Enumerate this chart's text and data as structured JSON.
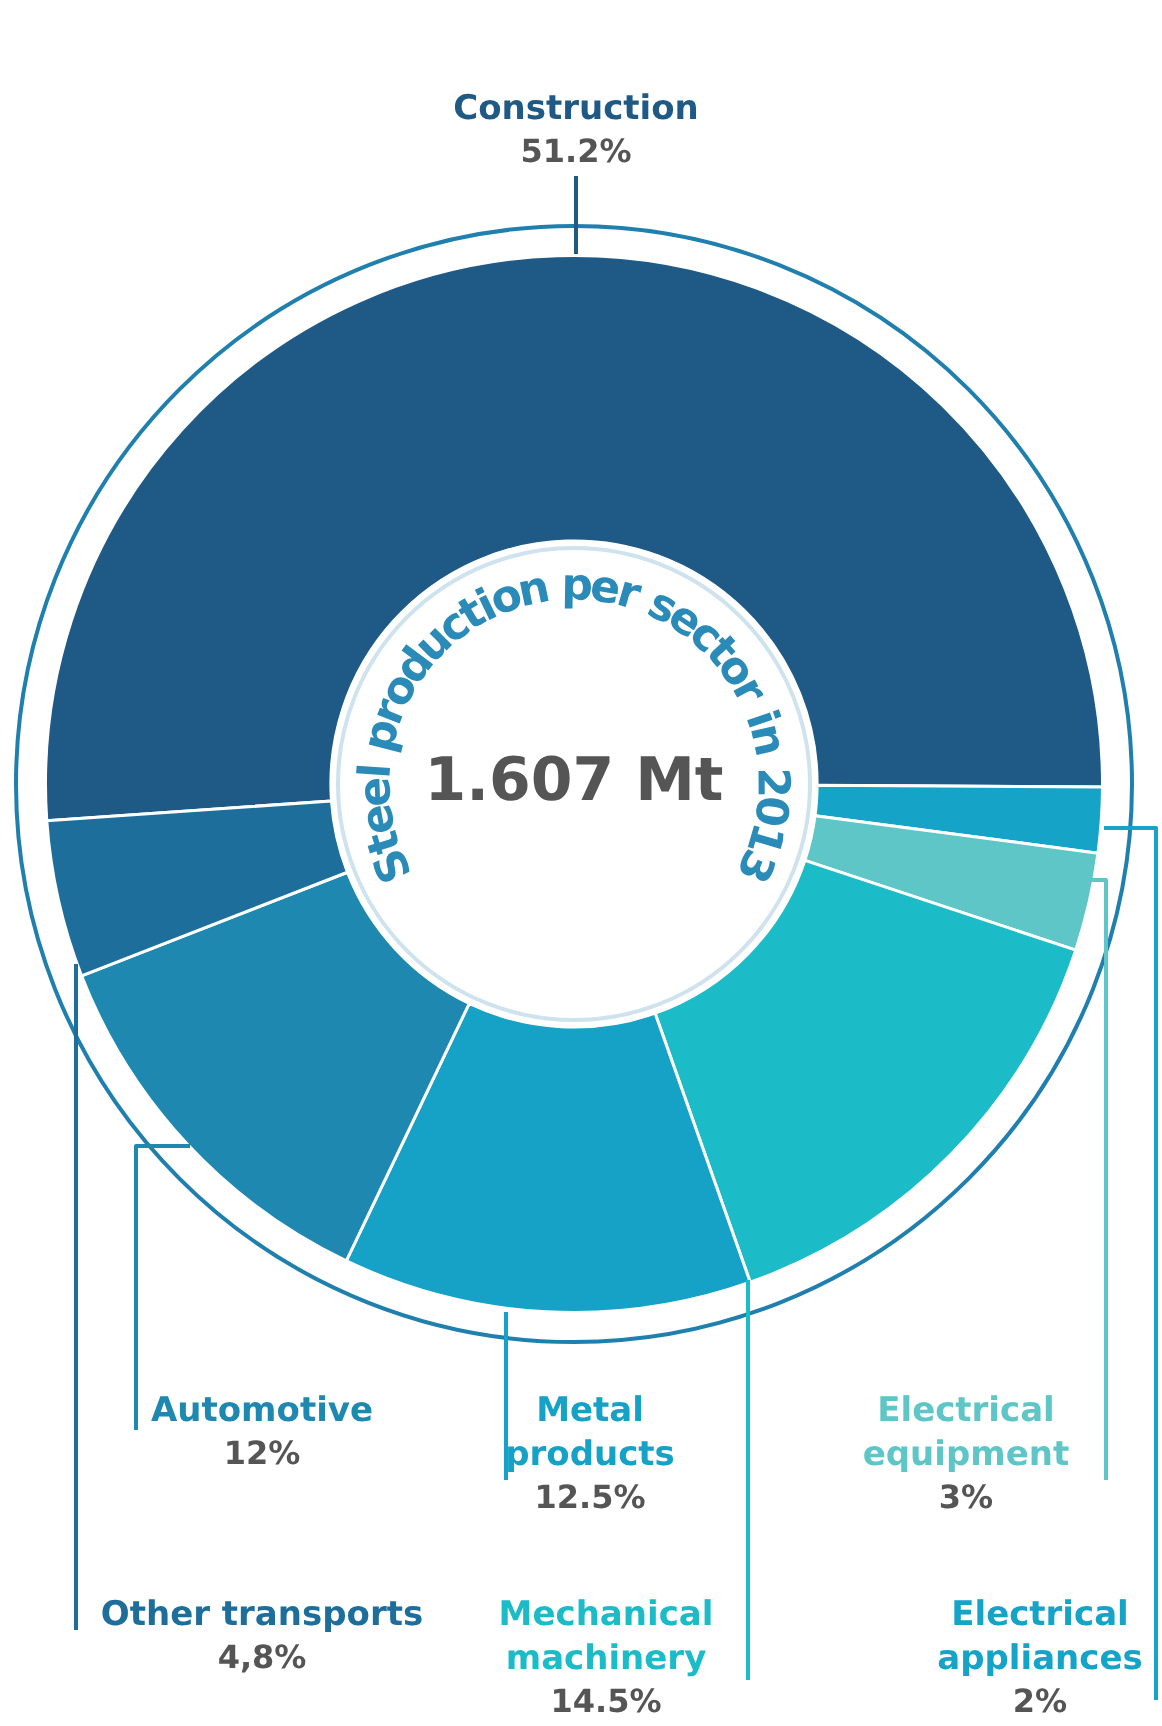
{
  "chart_data": {
    "type": "donut",
    "title": "Steel production per sector in 2013",
    "subtitle": "1.607 Mt",
    "categories": [
      "Construction",
      "Electrical appliances",
      "Electrical equipment",
      "Mechanical machinery",
      "Metal products",
      "Automotive",
      "Other transports"
    ],
    "values": [
      51.2,
      2,
      3,
      14.5,
      12.5,
      12,
      4.8
    ],
    "value_labels": [
      "51.2%",
      "2%",
      "3%",
      "14.5%",
      "12.5%",
      "12%",
      "4,8%"
    ],
    "colors": [
      "#1f5a87",
      "#15a3c8",
      "#5ec6c6",
      "#1bbcc8",
      "#16a1c6",
      "#1e88b0",
      "#1d6e9b"
    ],
    "legend": false
  }
}
